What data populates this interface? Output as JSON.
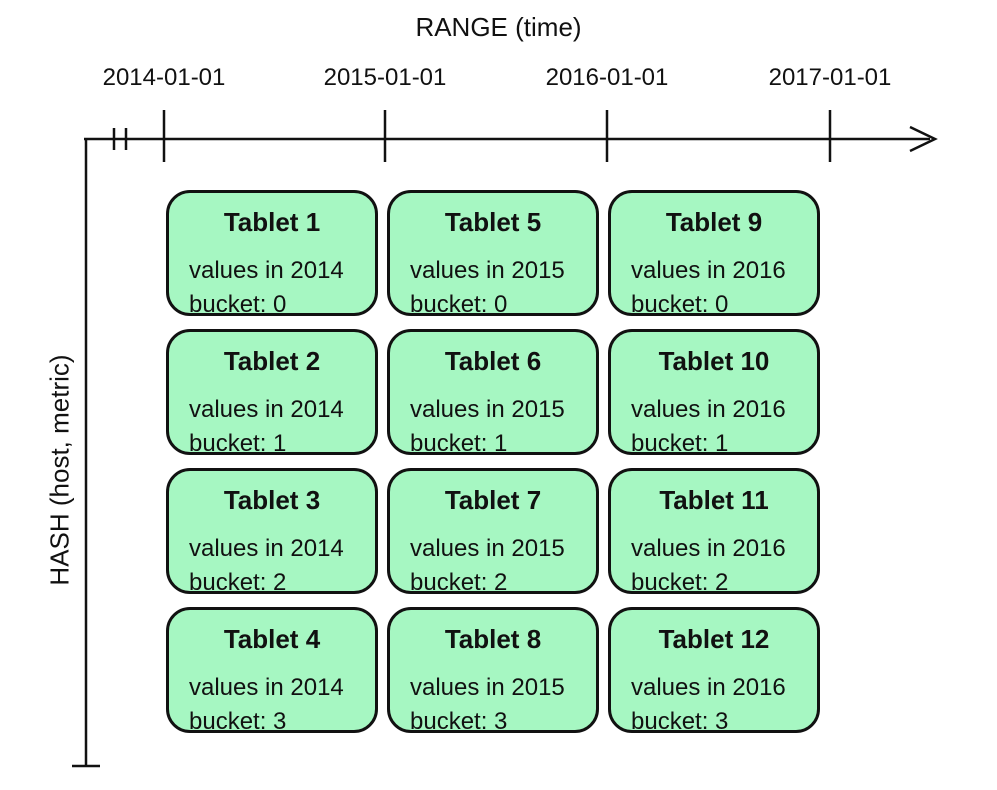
{
  "range_axis": {
    "title": "RANGE (time)",
    "ticks": [
      "2014-01-01",
      "2015-01-01",
      "2016-01-01",
      "2017-01-01"
    ]
  },
  "hash_axis": {
    "title": "HASH (host, metric)"
  },
  "colors": {
    "tablet_fill": "#a6f7c2",
    "stroke": "#111111"
  },
  "tablets": [
    {
      "name": "Tablet 1",
      "values": "values in 2014",
      "bucket": "bucket: 0"
    },
    {
      "name": "Tablet 5",
      "values": "values in 2015",
      "bucket": "bucket: 0"
    },
    {
      "name": "Tablet 9",
      "values": "values in 2016",
      "bucket": "bucket: 0"
    },
    {
      "name": "Tablet 2",
      "values": "values in 2014",
      "bucket": "bucket: 1"
    },
    {
      "name": "Tablet 6",
      "values": "values in 2015",
      "bucket": "bucket: 1"
    },
    {
      "name": "Tablet 10",
      "values": "values in 2016",
      "bucket": "bucket: 1"
    },
    {
      "name": "Tablet 3",
      "values": "values in 2014",
      "bucket": "bucket: 2"
    },
    {
      "name": "Tablet 7",
      "values": "values in 2015",
      "bucket": "bucket: 2"
    },
    {
      "name": "Tablet 11",
      "values": "values in 2016",
      "bucket": "bucket: 2"
    },
    {
      "name": "Tablet 4",
      "values": "values in 2014",
      "bucket": "bucket: 3"
    },
    {
      "name": "Tablet 8",
      "values": "values in 2015",
      "bucket": "bucket: 3"
    },
    {
      "name": "Tablet 12",
      "values": "values in 2016",
      "bucket": "bucket: 3"
    }
  ]
}
